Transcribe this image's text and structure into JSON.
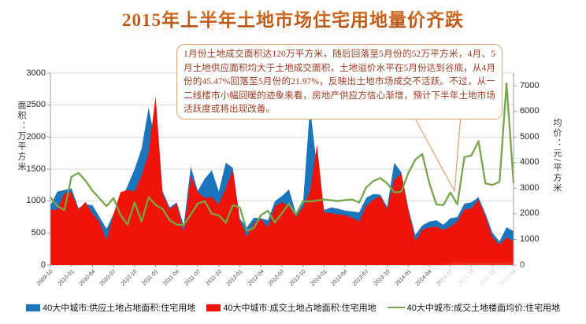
{
  "title": "2015年上半年土地市场住宅用地量价齐跌",
  "annotation": {
    "text": "1月份土地成交面积达120万平方米，随后回落至5月份的52万平方米，4月、5月土地供应面积均大于土地成交面积，土地溢价水平在5月份达到谷底，从4月份的45.47%回落至5月份的21.97%，反映出土地市场成交不活跃。不过，从一二线楼市小幅回暖的迹象来看，房地产供应方信心渐增，预计下半年土地市场活跃度或将出现改善。"
  },
  "legend": [
    {
      "label": "40大中城市:供应土地占地面积:住宅用地",
      "color": "#1b75bc",
      "type": "area"
    },
    {
      "label": "40大中城市:成交土地占地面积:住宅用地",
      "color": "#ee1407",
      "type": "area"
    },
    {
      "label": "40大中城市:成交土地楼面均价:住宅用地",
      "color": "#76a64a",
      "type": "line"
    }
  ],
  "chart_data": {
    "type": "combo (two overlapped area series on left axis + line series on right axis)",
    "left_axis": {
      "title": "面积：万平方米",
      "ticks": [
        0,
        500,
        1000,
        1500,
        2000,
        2500,
        3000
      ],
      "max": 3000
    },
    "right_axis": {
      "title": "均价：元/平方米",
      "ticks": [
        0,
        1000,
        2000,
        3000,
        4000,
        5000,
        6000,
        7000
      ],
      "max": 7500
    },
    "grid": "horizontal, every 500 of left axis",
    "legend_position": "bottom",
    "x_tick_labels": [
      "2009-10",
      "2010-01",
      "2010-04",
      "2010-07",
      "2010-10",
      "2011-01",
      "2011-04",
      "2011-07",
      "2011-10",
      "2012-01",
      "2012-04",
      "2012-07",
      "2012-10",
      "2013-01",
      "2013-04",
      "2013-07",
      "2013-10",
      "2014-01",
      "2014-04",
      "2014-07",
      "2014-10",
      "2015-01",
      "2015-04"
    ],
    "x_tick_every": 3,
    "categories": [
      "2009-10",
      "2009-11",
      "2009-12",
      "2010-01",
      "2010-02",
      "2010-03",
      "2010-04",
      "2010-05",
      "2010-06",
      "2010-07",
      "2010-08",
      "2010-09",
      "2010-10",
      "2010-11",
      "2010-12",
      "2011-01",
      "2011-02",
      "2011-03",
      "2011-04",
      "2011-05",
      "2011-06",
      "2011-07",
      "2011-08",
      "2011-09",
      "2011-10",
      "2011-11",
      "2011-12",
      "2012-01",
      "2012-02",
      "2012-03",
      "2012-04",
      "2012-05",
      "2012-06",
      "2012-07",
      "2012-08",
      "2012-09",
      "2012-10",
      "2012-11",
      "2012-12",
      "2013-01",
      "2013-02",
      "2013-03",
      "2013-04",
      "2013-05",
      "2013-06",
      "2013-07",
      "2013-08",
      "2013-09",
      "2013-10",
      "2013-11",
      "2013-12",
      "2014-01",
      "2014-02",
      "2014-03",
      "2014-04",
      "2014-05",
      "2014-06",
      "2014-07",
      "2014-08",
      "2014-09",
      "2014-10",
      "2014-11",
      "2014-12",
      "2015-01",
      "2015-02",
      "2015-03",
      "2015-04"
    ],
    "series": [
      {
        "name": "40大中城市:供应土地占地面积:住宅用地",
        "axis": "left",
        "kind": "area",
        "color": "#1b75bc",
        "values": [
          930,
          1150,
          1170,
          1200,
          890,
          950,
          935,
          750,
          565,
          800,
          1000,
          1240,
          1500,
          1820,
          2460,
          1900,
          1150,
          900,
          980,
          620,
          1540,
          1160,
          1350,
          1480,
          1150,
          1600,
          1520,
          720,
          590,
          740,
          730,
          700,
          1000,
          1080,
          1180,
          810,
          960,
          2470,
          1520,
          860,
          900,
          880,
          850,
          840,
          820,
          1050,
          1110,
          1100,
          910,
          1600,
          1450,
          890,
          470,
          620,
          680,
          700,
          630,
          730,
          750,
          960,
          980,
          1060,
          800,
          500,
          370,
          590,
          530
        ]
      },
      {
        "name": "40大中城市:成交土地占地面积:住宅用地",
        "axis": "left",
        "kind": "area",
        "color": "#ee1407",
        "values": [
          860,
          870,
          1120,
          1140,
          870,
          985,
          800,
          675,
          380,
          800,
          1140,
          1170,
          1150,
          1400,
          1750,
          2640,
          1110,
          870,
          960,
          505,
          1390,
          1140,
          1050,
          1060,
          950,
          1200,
          1490,
          700,
          440,
          660,
          720,
          590,
          920,
          980,
          920,
          750,
          900,
          1150,
          1880,
          820,
          810,
          790,
          780,
          740,
          680,
          920,
          1020,
          1080,
          870,
          1330,
          1430,
          870,
          370,
          550,
          590,
          600,
          550,
          600,
          680,
          870,
          880,
          1020,
          760,
          430,
          320,
          430,
          370
        ]
      },
      {
        "name": "40大中城市:成交土地楼面均价:住宅用地",
        "axis": "right",
        "kind": "line",
        "color": "#76a64a",
        "values": [
          2650,
          2300,
          2150,
          3450,
          3600,
          3300,
          2900,
          2600,
          2300,
          2620,
          1950,
          1580,
          2450,
          1700,
          2650,
          2350,
          2190,
          1750,
          1580,
          1560,
          1970,
          2400,
          2500,
          2000,
          1950,
          1650,
          2340,
          2250,
          1340,
          1450,
          1950,
          2120,
          1660,
          2030,
          2400,
          1970,
          2500,
          2480,
          2520,
          2560,
          2530,
          2500,
          2540,
          2560,
          2440,
          3030,
          3280,
          3400,
          3190,
          2840,
          2860,
          3590,
          4120,
          4340,
          3200,
          2370,
          2340,
          2840,
          2370,
          4220,
          4280,
          4840,
          3190,
          3130,
          3250,
          7100,
          3200
        ]
      }
    ]
  }
}
